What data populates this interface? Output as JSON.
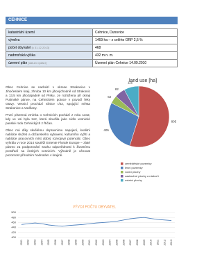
{
  "header": {
    "title": "CEHNICE"
  },
  "table": {
    "rows": [
      {
        "label": "katastrální území",
        "value": "Cehnice, Dunovice"
      },
      {
        "label": "výměra",
        "value": "1469 ha – z celého ORP 2,5 %"
      },
      {
        "label": "počet obyvatel",
        "note": "[k 31.12.2013]",
        "value": "468"
      },
      {
        "label": "nadmořská výška",
        "value": "432 m n. m."
      },
      {
        "label": "územní plán",
        "note": "[datum vydání]",
        "value": "Územní plán Cehnice 14.09.2010"
      }
    ]
  },
  "text": {
    "paragraphs": [
      "Obec Cehnice se nachází v okrese Strakonice v Jihočeském kraji, zhruba 10 km jihovýchodně od Strakonic a 13,5 km jihozápadně od Písku. Je rozložena při okraji Putimské pánve, na Cehnickém potoce v povodí řeky Otavy. Vesnicí prochází silnice I/22, spojující města Strakonice a Vodňany.",
      "První písemná zmínka o Cehnicích pochází z roku 1342, kdy ve vsi byla tvrz, která sloužila jako sídlo vesnické panské rodu Cehnických z Řičan.",
      "Obec má díky skvělému dopravnímu napojení, kvalitní nabídce služeb a občanského vybavení, kulturního vyžití a nabídce pracovních míst dobrý rozvojový potenciál. Obec vyhrála v roce 2014 soutěži Entente Florale Europe – zlaté pásmo za podporování snahu odpovědnosti k životnímu prostředí na českých vesnicích. Výhodně je věnovat pozornost přírodním hodnotám v krajině."
    ]
  },
  "land_use_chart": {
    "type": "pie",
    "title": "land use [ha]",
    "categories": [
      "zemědělské pozemky",
      "lesní pozemky",
      "vodní plochy",
      "zastavěné plochy a nádvoří",
      "ostatní plochy"
    ],
    "values": [
      805,
      405,
      62,
      82,
      115
    ],
    "colors": [
      "#c0504d",
      "#4f81bd",
      "#9bbb59",
      "#8064a2",
      "#4bacc6"
    ]
  },
  "population_chart": {
    "type": "line",
    "title": "VÝVOJ POČTU OBYVATEL",
    "categories": [
      "1991",
      "1992",
      "1993",
      "1994",
      "1995",
      "1996",
      "1997",
      "1998",
      "1999",
      "2000",
      "2001",
      "2002",
      "2003",
      "2004",
      "2005",
      "2006",
      "2007",
      "2008",
      "2009",
      "2010",
      "2011",
      "2012",
      "2013"
    ],
    "values": [
      452,
      455,
      458,
      455,
      450,
      447,
      445,
      448,
      450,
      452,
      455,
      458,
      460,
      462,
      465,
      470,
      475,
      478,
      480,
      476,
      472,
      470,
      468
    ],
    "ylim": [
      400,
      500
    ],
    "yticks": [
      400,
      420,
      440,
      460,
      480,
      500
    ],
    "grid": true,
    "color": "#4f81bd"
  }
}
